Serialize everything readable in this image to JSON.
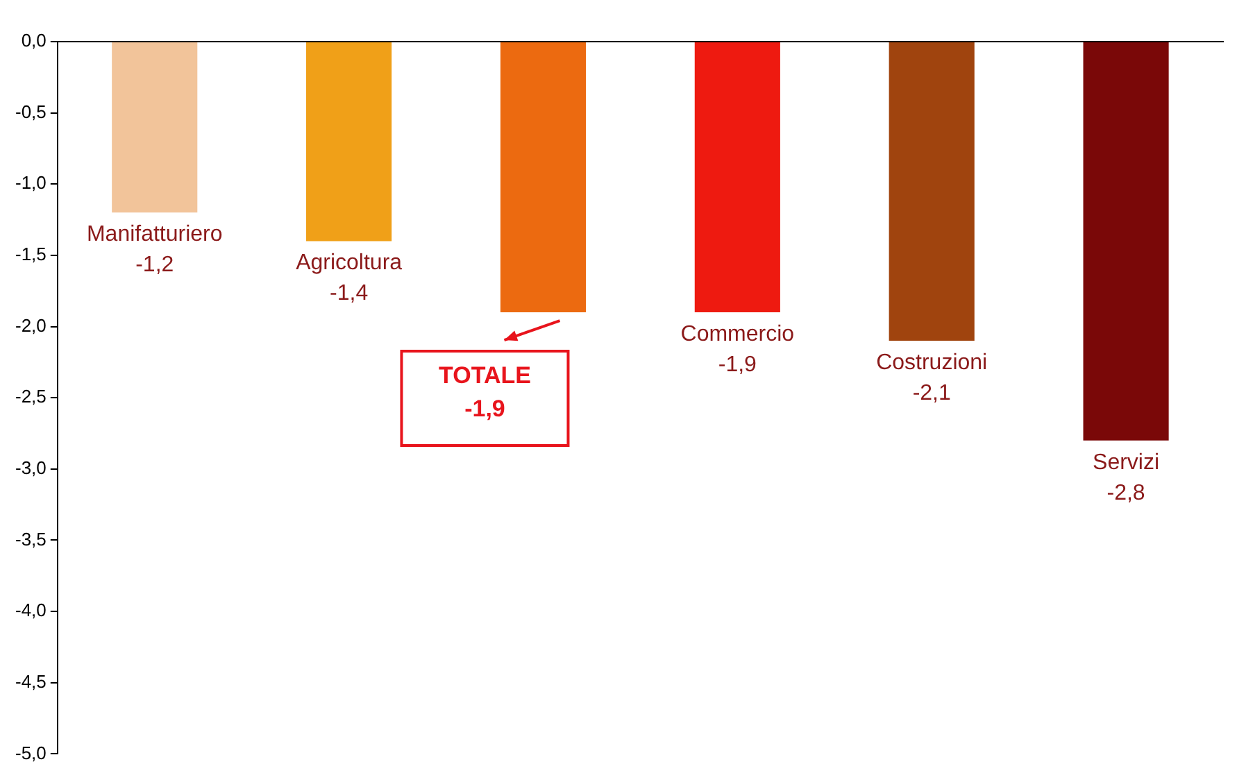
{
  "chart_data": {
    "type": "bar",
    "categories": [
      "Manifatturiero",
      "Agricoltura",
      null,
      "Commercio",
      "Costruzioni",
      "Servizi"
    ],
    "values": [
      -1.2,
      -1.4,
      -1.9,
      -1.9,
      -2.1,
      -2.8
    ],
    "colors": [
      "#f2c49a",
      "#f0a018",
      "#ec6a10",
      "#ee1a10",
      "#a0440e",
      "#7a0808"
    ],
    "value_labels": [
      "-1,2",
      "-1,4",
      null,
      "-1,9",
      "-2,1",
      "-2,8"
    ],
    "ylim": [
      -5,
      0
    ],
    "yticks": [
      {
        "value": 0,
        "label": "0,0"
      },
      {
        "value": -0.5,
        "label": "-0,5"
      },
      {
        "value": -1,
        "label": "-1,0"
      },
      {
        "value": -1.5,
        "label": "-1,5"
      },
      {
        "value": -2,
        "label": "-2,0"
      },
      {
        "value": -2.5,
        "label": "-2,5"
      },
      {
        "value": -3,
        "label": "-3,0"
      },
      {
        "value": -3.5,
        "label": "-3,5"
      },
      {
        "value": -4,
        "label": "-4,0"
      },
      {
        "value": -4.5,
        "label": "-4,5"
      },
      {
        "value": -5,
        "label": "-5,0"
      }
    ],
    "tick_labels": "y",
    "grid": false,
    "legend": false,
    "annotations": [
      "TOTALE\n-1,9"
    ]
  }
}
